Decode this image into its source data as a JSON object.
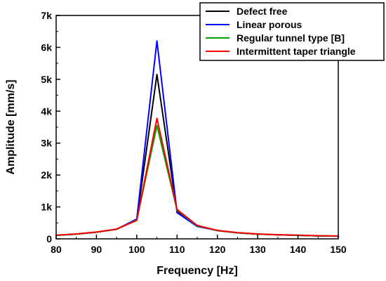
{
  "chart_data": {
    "type": "line",
    "xlabel": "Frequency [Hz]",
    "ylabel": "Amplitude [mm/s]",
    "xlim": [
      80,
      150
    ],
    "ylim": [
      0,
      7000
    ],
    "xticks": [
      80,
      90,
      100,
      110,
      120,
      130,
      140,
      150
    ],
    "xtick_labels": [
      "80",
      "90",
      "100",
      "110",
      "120",
      "130",
      "140",
      "150"
    ],
    "yticks": [
      0,
      1000,
      2000,
      3000,
      4000,
      5000,
      6000,
      7000
    ],
    "ytick_labels": [
      "0",
      "1k",
      "2k",
      "3k",
      "4k",
      "5k",
      "6k",
      "7k"
    ],
    "grid": false,
    "legend_position": "top-right",
    "x": [
      80,
      85,
      90,
      95,
      100,
      105,
      110,
      115,
      120,
      125,
      130,
      135,
      140,
      145,
      150
    ],
    "series": [
      {
        "name": "Defect free",
        "color": "#000000",
        "values": [
          110,
          150,
          210,
          300,
          600,
          5150,
          850,
          400,
          260,
          190,
          150,
          125,
          110,
          95,
          85
        ]
      },
      {
        "name": "Linear porous",
        "color": "#0000ff",
        "values": [
          110,
          150,
          210,
          300,
          620,
          6200,
          820,
          390,
          260,
          190,
          150,
          125,
          110,
          95,
          85
        ]
      },
      {
        "name": "Regular tunnel type [B]",
        "color": "#00a000",
        "values": [
          110,
          150,
          210,
          300,
          590,
          3550,
          900,
          410,
          260,
          190,
          150,
          125,
          110,
          95,
          85
        ]
      },
      {
        "name": "Intermittent taper triangle",
        "color": "#ff0000",
        "values": [
          115,
          155,
          215,
          305,
          580,
          3780,
          920,
          420,
          265,
          195,
          155,
          130,
          115,
          100,
          90
        ]
      }
    ]
  }
}
